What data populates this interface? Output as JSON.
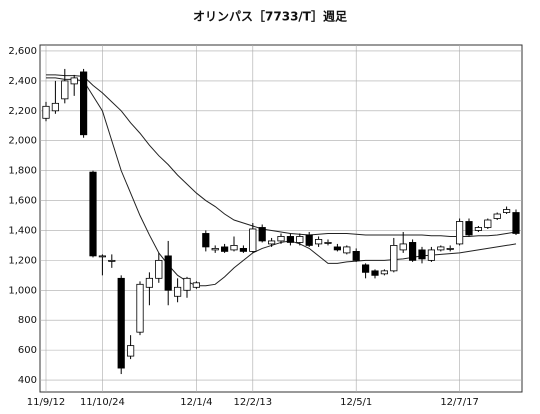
{
  "chart_data": {
    "type": "candlestick",
    "title": "オリンパス［7733/T］週足",
    "categories": [
      "11/9/12",
      null,
      null,
      null,
      null,
      null,
      "11/10/24",
      null,
      null,
      null,
      null,
      null,
      null,
      null,
      null,
      null,
      "12/1/4",
      null,
      null,
      null,
      null,
      null,
      "12/2/13",
      null,
      null,
      null,
      null,
      null,
      null,
      null,
      null,
      null,
      null,
      "12/5/1",
      null,
      null,
      null,
      null,
      null,
      null,
      null,
      null,
      null,
      null,
      "12/7/17",
      null,
      null,
      null,
      null,
      null,
      null
    ],
    "open": [
      2150,
      2200,
      2280,
      2380,
      2460,
      1790,
      1230,
      1200,
      1080,
      560,
      720,
      1020,
      1080,
      1230,
      960,
      1000,
      1020,
      1380,
      1270,
      1290,
      1270,
      1280,
      1260,
      1420,
      1310,
      1330,
      1360,
      1320,
      1370,
      1310,
      1320,
      1290,
      1250,
      1260,
      1170,
      1130,
      1110,
      1130,
      1270,
      1320,
      1270,
      1200,
      1270,
      1280,
      1310,
      1460,
      1400,
      1420,
      1480,
      1520,
      1520
    ],
    "high": [
      2260,
      2400,
      2480,
      2440,
      2480,
      1800,
      1240,
      1240,
      1100,
      700,
      1060,
      1120,
      1250,
      1330,
      1080,
      1090,
      1060,
      1400,
      1300,
      1310,
      1360,
      1300,
      1450,
      1440,
      1350,
      1380,
      1380,
      1380,
      1390,
      1360,
      1340,
      1310,
      1300,
      1280,
      1180,
      1140,
      1140,
      1350,
      1390,
      1340,
      1290,
      1290,
      1300,
      1300,
      1480,
      1480,
      1430,
      1480,
      1520,
      1560,
      1540
    ],
    "low": [
      2130,
      2180,
      2250,
      2300,
      2020,
      1220,
      1100,
      1150,
      440,
      540,
      700,
      900,
      1050,
      900,
      920,
      950,
      1010,
      1260,
      1250,
      1250,
      1260,
      1250,
      1250,
      1320,
      1290,
      1310,
      1300,
      1300,
      1290,
      1290,
      1300,
      1260,
      1240,
      1190,
      1080,
      1080,
      1100,
      1120,
      1250,
      1190,
      1180,
      1190,
      1260,
      1260,
      1300,
      1360,
      1390,
      1410,
      1470,
      1510,
      1370
    ],
    "close": [
      2230,
      2250,
      2400,
      2420,
      2040,
      1230,
      1230,
      1200,
      480,
      630,
      1040,
      1080,
      1200,
      1000,
      1020,
      1080,
      1050,
      1290,
      1280,
      1260,
      1300,
      1260,
      1410,
      1330,
      1330,
      1360,
      1320,
      1360,
      1300,
      1340,
      1320,
      1270,
      1290,
      1200,
      1120,
      1100,
      1130,
      1300,
      1310,
      1200,
      1210,
      1270,
      1290,
      1280,
      1460,
      1370,
      1420,
      1470,
      1510,
      1540,
      1380
    ],
    "up_color": "#ffffff",
    "down_color": "#000000",
    "lines": [
      {
        "color": "#222222",
        "values": [
          2440,
          2440,
          2435,
          2435,
          2430,
          2370,
          2320,
          2260,
          2200,
          2120,
          2050,
          1970,
          1900,
          1840,
          1770,
          1710,
          1650,
          1600,
          1560,
          1510,
          1470,
          1450,
          1430,
          1410,
          1400,
          1390,
          1380,
          1375,
          1370,
          1375,
          1380,
          1380,
          1380,
          1375,
          1370,
          1370,
          1370,
          1370,
          1370,
          1370,
          1370,
          1365,
          1365,
          1360,
          1360,
          1360,
          1365,
          1365,
          1370,
          1380,
          1390
        ]
      },
      {
        "color": "#222222",
        "values": [
          2420,
          2420,
          2410,
          2410,
          2400,
          2300,
          2200,
          2000,
          1800,
          1650,
          1500,
          1370,
          1250,
          1170,
          1100,
          1060,
          1030,
          1030,
          1040,
          1090,
          1150,
          1200,
          1250,
          1280,
          1300,
          1320,
          1330,
          1310,
          1280,
          1230,
          1180,
          1180,
          1190,
          1195,
          1200,
          1200,
          1200,
          1205,
          1210,
          1220,
          1230,
          1235,
          1240,
          1245,
          1250,
          1260,
          1270,
          1280,
          1290,
          1300,
          1310
        ]
      }
    ],
    "ylim": [
      320,
      2640
    ],
    "yticks": [
      400,
      600,
      800,
      {
        "value": 1000,
        "label": "1,000"
      },
      {
        "value": 1200,
        "label": "1,200"
      },
      {
        "value": 1400,
        "label": "1,400"
      },
      {
        "value": 1600,
        "label": "1,600"
      },
      {
        "value": 1800,
        "label": "1,800"
      },
      {
        "value": 2000,
        "label": "2,000"
      },
      {
        "value": 2200,
        "label": "2,200"
      },
      {
        "value": 2400,
        "label": "2,400"
      },
      {
        "value": 2600,
        "label": "2,600"
      }
    ],
    "grid": true
  }
}
